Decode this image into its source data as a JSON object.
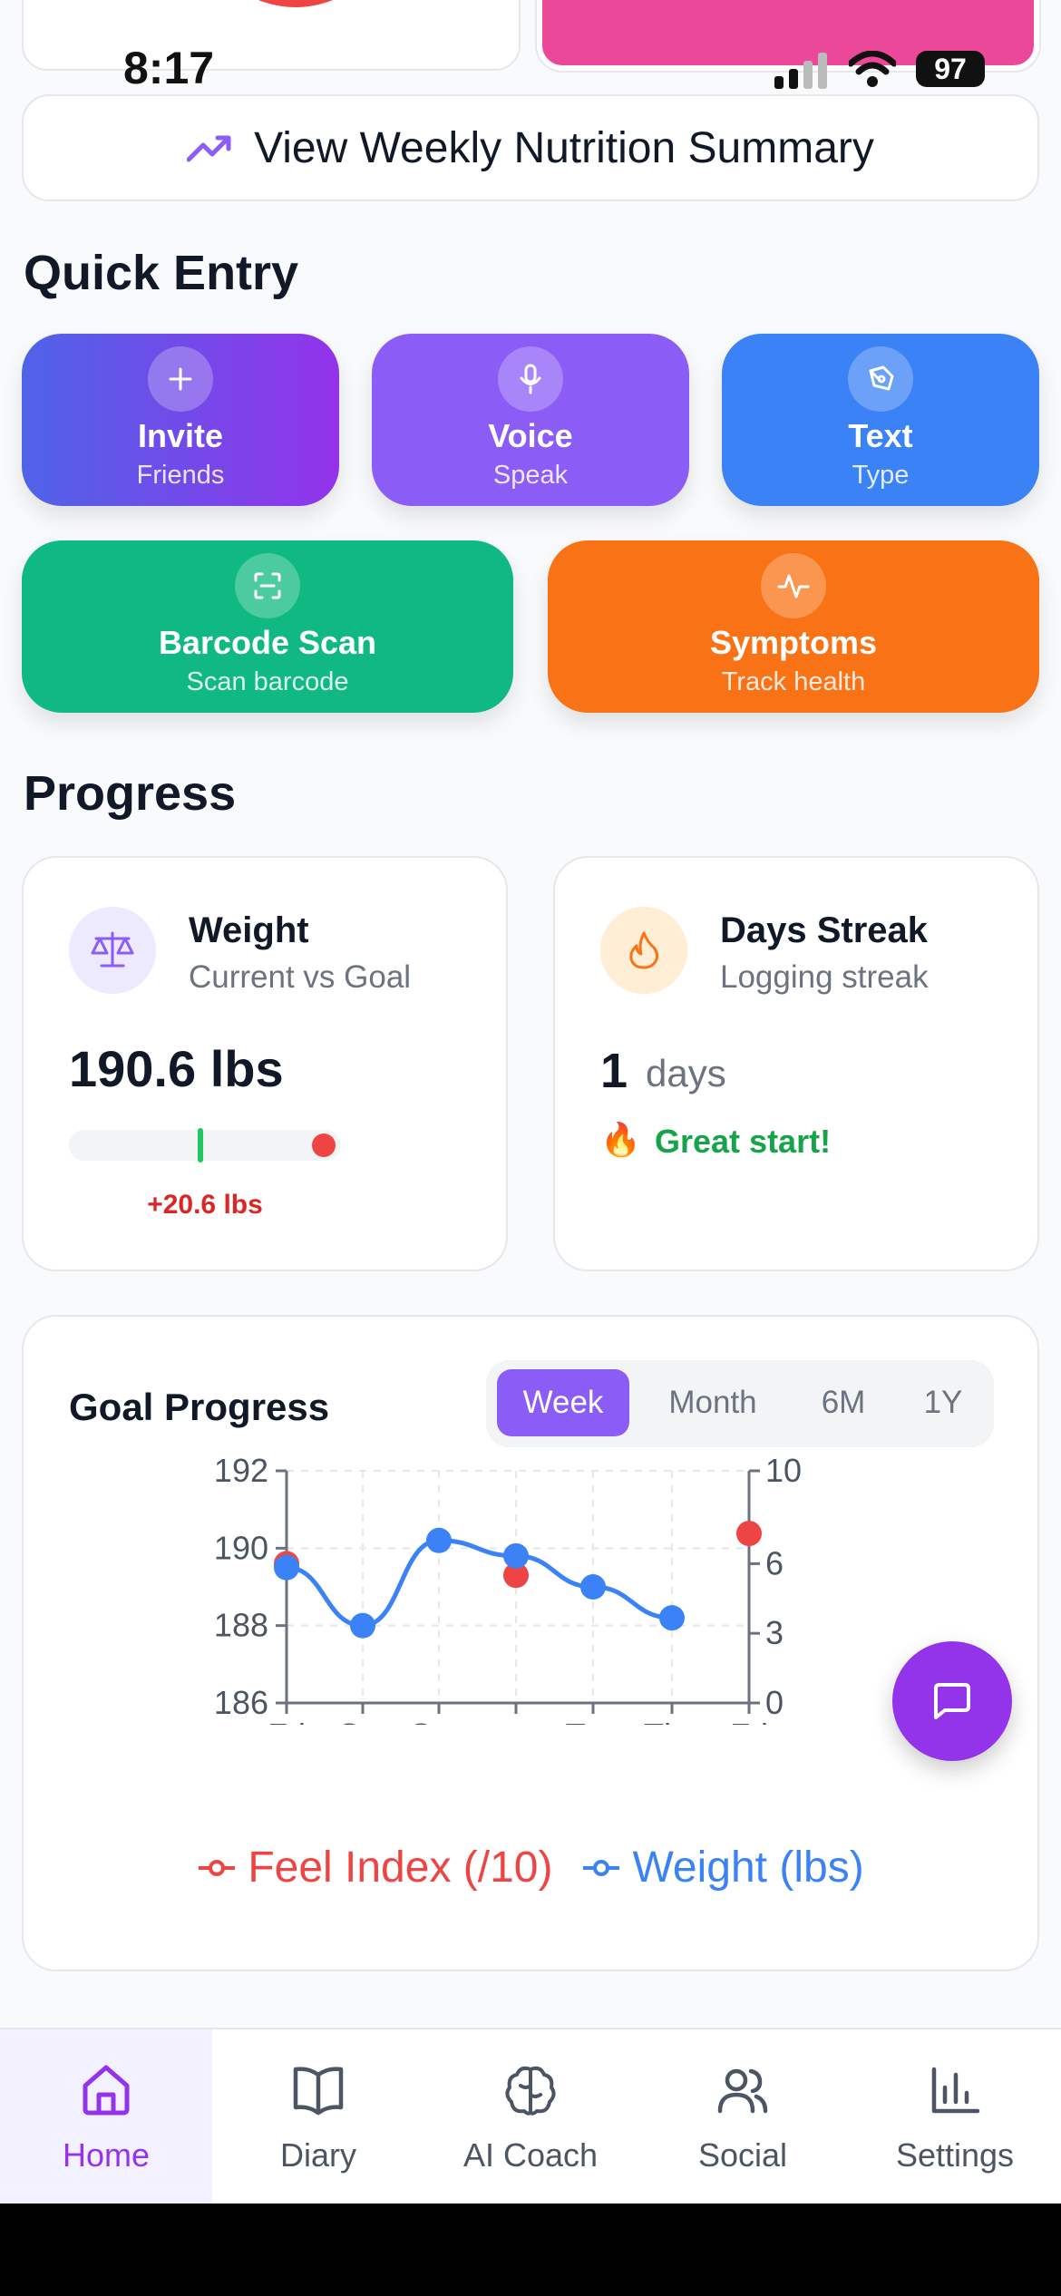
{
  "status_bar": {
    "time": "8:17",
    "battery": "97"
  },
  "weekly_summary": {
    "label": "View Weekly Nutrition Summary"
  },
  "quick_entry": {
    "title": "Quick Entry",
    "buttons": [
      {
        "title": "Invite",
        "subtitle": "Friends",
        "icon": "plus-icon"
      },
      {
        "title": "Voice",
        "subtitle": "Speak",
        "icon": "microphone-icon"
      },
      {
        "title": "Text",
        "subtitle": "Type",
        "icon": "pen-icon"
      },
      {
        "title": "Barcode Scan",
        "subtitle": "Scan barcode",
        "icon": "scan-icon"
      },
      {
        "title": "Symptoms",
        "subtitle": "Track health",
        "icon": "activity-icon"
      }
    ]
  },
  "progress": {
    "title": "Progress",
    "weight": {
      "title": "Weight",
      "subtitle": "Current vs Goal",
      "value": "190.6 lbs",
      "diff": "+20.6 lbs"
    },
    "streak": {
      "title": "Days Streak",
      "subtitle": "Logging streak",
      "value": "1",
      "unit": "days",
      "emoji": "🔥",
      "message": "Great start!"
    }
  },
  "goal_progress": {
    "title": "Goal Progress",
    "tabs": [
      "Week",
      "Month",
      "6M",
      "1Y"
    ],
    "active_tab": "Week"
  },
  "chart_data": {
    "type": "line",
    "x": [
      "Fri",
      "Sat",
      "Sun",
      "",
      "Tue",
      "Thu",
      "Fri"
    ],
    "y_left_ticks": [
      "186",
      "188",
      "190",
      "192"
    ],
    "y_right_ticks": [
      "0",
      "3",
      "6",
      "10"
    ],
    "ylim_left": [
      186,
      192
    ],
    "ylim_right": [
      0,
      10
    ],
    "series": [
      {
        "name": "Weight (lbs)",
        "axis": "left",
        "color": "#3b82f6",
        "values": [
          189.5,
          188.0,
          190.2,
          189.8,
          189.0,
          188.2,
          null
        ]
      },
      {
        "name": "Feel Index (/10)",
        "axis": "right",
        "color": "#ef4444",
        "values": [
          6,
          null,
          null,
          5.5,
          null,
          null,
          7.3
        ]
      }
    ],
    "grid": true
  },
  "nav": {
    "items": [
      {
        "label": "Home",
        "icon": "home-icon"
      },
      {
        "label": "Diary",
        "icon": "book-icon"
      },
      {
        "label": "AI Coach",
        "icon": "brain-icon"
      },
      {
        "label": "Social",
        "icon": "users-icon"
      },
      {
        "label": "Settings",
        "icon": "bar-chart-icon"
      }
    ],
    "active": "Home"
  },
  "colors": {
    "purple": "#9333ea",
    "blue": "#3b82f6",
    "green": "#10b981",
    "orange": "#f97316",
    "red": "#ef4444"
  }
}
